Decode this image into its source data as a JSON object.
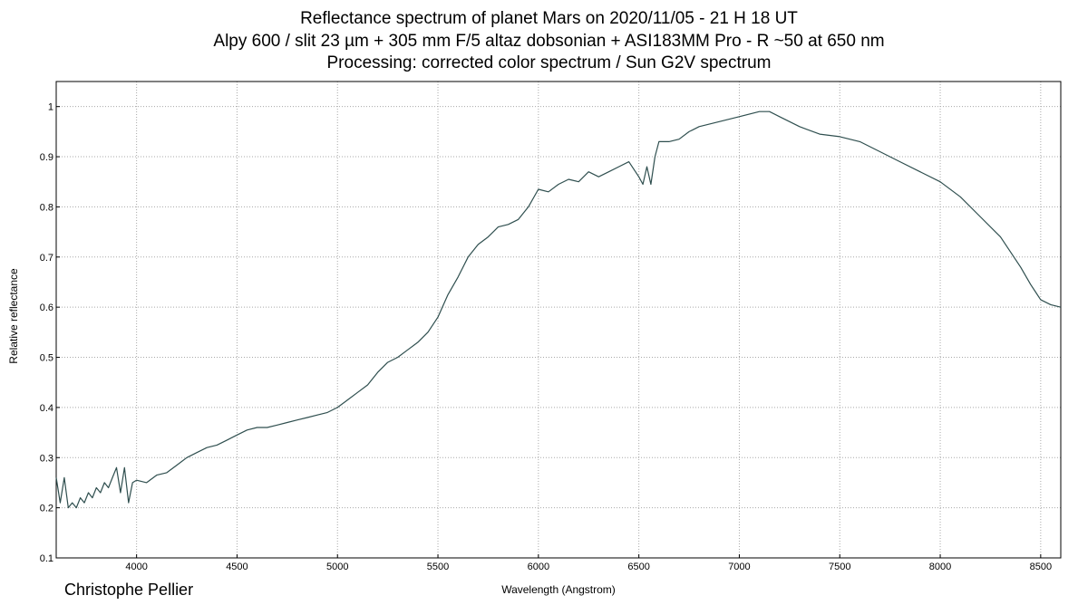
{
  "chart_data": {
    "type": "line",
    "title": [
      "Reflectance spectrum of planet Mars on 2020/11/05 - 21 H 18 UT",
      "Alpy 600 / slit 23 µm + 305 mm F/5 altaz dobsonian + ASI183MM Pro - R ~50 at 650 nm",
      "Processing: corrected color spectrum / Sun G2V spectrum"
    ],
    "xlabel": "Wavelength (Angstrom)",
    "ylabel": "Relative reflectance",
    "xlim": [
      3600,
      8600
    ],
    "ylim": [
      0.1,
      1.05
    ],
    "xticks": [
      4000,
      4500,
      5000,
      5500,
      6000,
      6500,
      7000,
      7500,
      8000,
      8500
    ],
    "yticks": [
      0.1,
      0.2,
      0.3,
      0.4,
      0.5,
      0.6,
      0.7,
      0.8,
      0.9,
      1
    ],
    "grid": true,
    "line_color": "#2f4f4f",
    "series": [
      {
        "x": [
          3600,
          3620,
          3640,
          3660,
          3680,
          3700,
          3720,
          3740,
          3760,
          3780,
          3800,
          3820,
          3840,
          3860,
          3880,
          3900,
          3920,
          3940,
          3960,
          3980,
          4000,
          4050,
          4100,
          4150,
          4200,
          4250,
          4300,
          4350,
          4400,
          4450,
          4500,
          4550,
          4600,
          4650,
          4700,
          4750,
          4800,
          4850,
          4900,
          4950,
          5000,
          5050,
          5100,
          5150,
          5200,
          5250,
          5300,
          5350,
          5400,
          5450,
          5500,
          5550,
          5600,
          5650,
          5700,
          5750,
          5800,
          5850,
          5900,
          5950,
          6000,
          6050,
          6100,
          6150,
          6200,
          6250,
          6300,
          6350,
          6400,
          6450,
          6500,
          6520,
          6540,
          6560,
          6580,
          6600,
          6650,
          6700,
          6750,
          6800,
          6900,
          7000,
          7100,
          7150,
          7200,
          7300,
          7400,
          7500,
          7600,
          7700,
          7800,
          7900,
          8000,
          8100,
          8200,
          8300,
          8400,
          8450,
          8500,
          8550,
          8600
        ],
        "y": [
          0.26,
          0.21,
          0.26,
          0.2,
          0.21,
          0.2,
          0.22,
          0.21,
          0.23,
          0.22,
          0.24,
          0.23,
          0.25,
          0.24,
          0.26,
          0.28,
          0.23,
          0.28,
          0.21,
          0.25,
          0.255,
          0.25,
          0.265,
          0.27,
          0.285,
          0.3,
          0.31,
          0.32,
          0.325,
          0.335,
          0.345,
          0.355,
          0.36,
          0.36,
          0.365,
          0.37,
          0.375,
          0.38,
          0.385,
          0.39,
          0.4,
          0.415,
          0.43,
          0.445,
          0.47,
          0.49,
          0.5,
          0.515,
          0.53,
          0.55,
          0.58,
          0.625,
          0.66,
          0.7,
          0.725,
          0.74,
          0.76,
          0.765,
          0.775,
          0.8,
          0.835,
          0.83,
          0.845,
          0.855,
          0.85,
          0.87,
          0.86,
          0.87,
          0.88,
          0.89,
          0.86,
          0.845,
          0.88,
          0.845,
          0.9,
          0.93,
          0.93,
          0.935,
          0.95,
          0.96,
          0.97,
          0.98,
          0.99,
          0.99,
          0.98,
          0.96,
          0.945,
          0.94,
          0.93,
          0.91,
          0.89,
          0.87,
          0.85,
          0.82,
          0.78,
          0.74,
          0.68,
          0.645,
          0.615,
          0.605,
          0.6
        ]
      }
    ]
  },
  "footer": {
    "author": "Christophe Pellier"
  }
}
